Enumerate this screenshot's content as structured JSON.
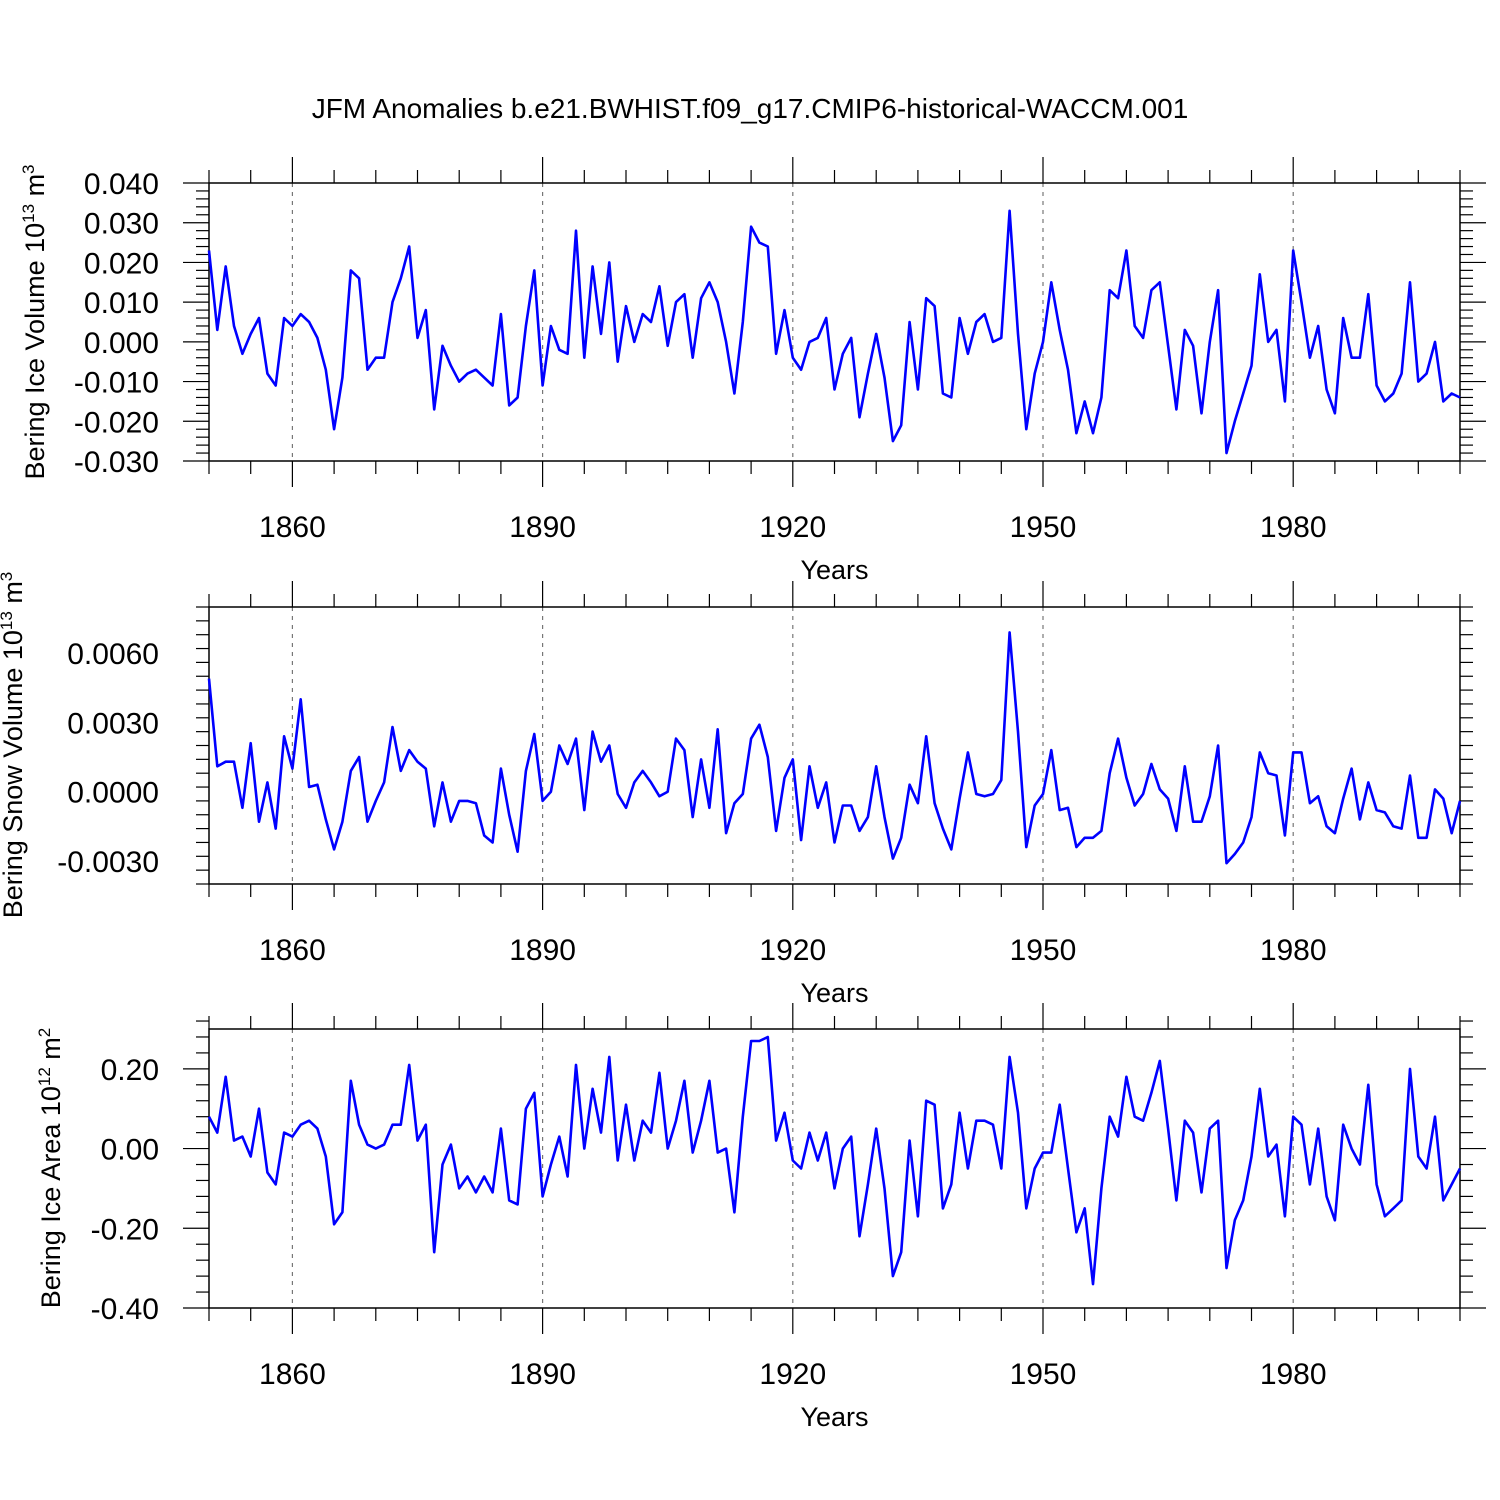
{
  "figure": {
    "title": "JFM Anomalies b.e21.BWHIST.f09_g17.CMIP6-historical-WACCM.001",
    "line_color": "#0000ff",
    "axis_color": "#000000"
  },
  "chart_data": [
    {
      "type": "line",
      "ylabel_main": "Bering Ice Volume 10",
      "ylabel_exp": "13",
      "ylabel_unit": " m",
      "ylabel_unit_exp": "3",
      "xlabel": "Years",
      "xlim": [
        1850,
        2000
      ],
      "ylim": [
        -0.03,
        0.04
      ],
      "x_ticks": [
        1860,
        1890,
        1920,
        1950,
        1980
      ],
      "x_tick_labels": [
        "1860",
        "1890",
        "1920",
        "1950",
        "1980"
      ],
      "y_ticks": [
        -0.03,
        -0.02,
        -0.01,
        0.0,
        0.01,
        0.02,
        0.03,
        0.04
      ],
      "y_tick_labels": [
        "-0.030",
        "-0.020",
        "-0.010",
        "0.000",
        "0.010",
        "0.020",
        "0.030",
        "0.040"
      ],
      "y_minor_step": 0.002,
      "x_start": 1850,
      "series": [
        {
          "name": "Bering Ice Volume",
          "values": [
            0.023,
            0.003,
            0.019,
            0.004,
            -0.003,
            0.002,
            0.006,
            -0.008,
            -0.011,
            0.006,
            0.004,
            0.007,
            0.005,
            0.001,
            -0.007,
            -0.022,
            -0.009,
            0.018,
            0.016,
            -0.007,
            -0.004,
            -0.004,
            0.01,
            0.016,
            0.024,
            0.001,
            0.008,
            -0.017,
            -0.001,
            -0.006,
            -0.01,
            -0.008,
            -0.007,
            -0.009,
            -0.011,
            0.007,
            -0.016,
            -0.014,
            0.004,
            0.018,
            -0.011,
            0.004,
            -0.002,
            -0.003,
            0.028,
            -0.004,
            0.019,
            0.002,
            0.02,
            -0.005,
            0.009,
            0.0,
            0.007,
            0.005,
            0.014,
            -0.001,
            0.01,
            0.012,
            -0.004,
            0.011,
            0.015,
            0.01,
            0.0,
            -0.013,
            0.005,
            0.029,
            0.025,
            0.024,
            -0.003,
            0.008,
            -0.004,
            -0.007,
            0.0,
            0.001,
            0.006,
            -0.012,
            -0.003,
            0.001,
            -0.019,
            -0.008,
            0.002,
            -0.009,
            -0.025,
            -0.021,
            0.005,
            -0.012,
            0.011,
            0.009,
            -0.013,
            -0.014,
            0.006,
            -0.003,
            0.005,
            0.007,
            0.0,
            0.001,
            0.033,
            0.002,
            -0.022,
            -0.008,
            0.0,
            0.015,
            0.003,
            -0.007,
            -0.023,
            -0.015,
            -0.023,
            -0.014,
            0.013,
            0.011,
            0.023,
            0.004,
            0.001,
            0.013,
            0.015,
            -0.001,
            -0.017,
            0.003,
            -0.001,
            -0.018,
            0.0,
            0.013,
            -0.028,
            -0.02,
            -0.013,
            -0.006,
            0.017,
            0.0,
            0.003,
            -0.015,
            0.023,
            0.01,
            -0.004,
            0.004,
            -0.012,
            -0.018,
            0.006,
            -0.004,
            -0.004,
            0.012,
            -0.011,
            -0.015,
            -0.013,
            -0.008,
            0.015,
            -0.01,
            -0.008,
            0.0,
            -0.015,
            -0.013,
            -0.014
          ]
        }
      ]
    },
    {
      "type": "line",
      "ylabel_main": "Bering Snow Volume 10",
      "ylabel_exp": "13",
      "ylabel_unit": " m",
      "ylabel_unit_exp": "3",
      "xlabel": "Years",
      "xlim": [
        1850,
        2000
      ],
      "ylim": [
        -0.004,
        0.008
      ],
      "x_ticks": [
        1860,
        1890,
        1920,
        1950,
        1980
      ],
      "x_tick_labels": [
        "1860",
        "1890",
        "1920",
        "1950",
        "1980"
      ],
      "y_ticks": [
        -0.003,
        0.0,
        0.003,
        0.006
      ],
      "y_tick_labels": [
        "-0.0030",
        "0.0000",
        "0.0030",
        "0.0060"
      ],
      "y_minor_step": 0.0006,
      "x_start": 1850,
      "series": [
        {
          "name": "Bering Snow Volume",
          "values": [
            0.0049,
            0.0011,
            0.0013,
            0.0013,
            -0.0007,
            0.0021,
            -0.0013,
            0.0004,
            -0.0016,
            0.0024,
            0.001,
            0.004,
            0.0002,
            0.0003,
            -0.0012,
            -0.0025,
            -0.0013,
            0.0009,
            0.0015,
            -0.0013,
            -0.0004,
            0.0004,
            0.0028,
            0.0009,
            0.0018,
            0.0013,
            0.001,
            -0.0015,
            0.0004,
            -0.0013,
            -0.0004,
            -0.0004,
            -0.0005,
            -0.0019,
            -0.0022,
            0.001,
            -0.001,
            -0.0026,
            0.0009,
            0.0025,
            -0.0004,
            0.0,
            0.002,
            0.0012,
            0.0023,
            -0.0008,
            0.0026,
            0.0013,
            0.002,
            -0.0001,
            -0.0007,
            0.0004,
            0.0009,
            0.0004,
            -0.0002,
            0.0,
            0.0023,
            0.0018,
            -0.0011,
            0.0014,
            -0.0007,
            0.0027,
            -0.0018,
            -0.0005,
            -0.0001,
            0.0023,
            0.0029,
            0.0015,
            -0.0017,
            0.0006,
            0.0014,
            -0.0021,
            0.0011,
            -0.0007,
            0.0004,
            -0.0022,
            -0.0006,
            -0.0006,
            -0.0017,
            -0.0011,
            0.0011,
            -0.0011,
            -0.0029,
            -0.002,
            0.0003,
            -0.0005,
            0.0024,
            -0.0005,
            -0.0016,
            -0.0025,
            -0.0003,
            0.0017,
            -0.0001,
            -0.0002,
            -0.0001,
            0.0005,
            0.0069,
            0.0026,
            -0.0024,
            -0.0006,
            -0.0001,
            0.0018,
            -0.0008,
            -0.0007,
            -0.0024,
            -0.002,
            -0.002,
            -0.0017,
            0.0008,
            0.0023,
            0.0006,
            -0.0006,
            -0.0001,
            0.0012,
            0.0001,
            -0.0003,
            -0.0017,
            0.0011,
            -0.0013,
            -0.0013,
            -0.0002,
            0.002,
            -0.0031,
            -0.0027,
            -0.0022,
            -0.0011,
            0.0017,
            0.0008,
            0.0007,
            -0.0019,
            0.0017,
            0.0017,
            -0.0005,
            -0.0002,
            -0.0015,
            -0.0018,
            -0.0003,
            0.001,
            -0.0012,
            0.0004,
            -0.0008,
            -0.0009,
            -0.0015,
            -0.0016,
            0.0007,
            -0.002,
            -0.002,
            0.0001,
            -0.0003,
            -0.0018,
            -0.0004
          ]
        }
      ]
    },
    {
      "type": "line",
      "ylabel_main": "Bering Ice Area 10",
      "ylabel_exp": "12",
      "ylabel_unit": " m",
      "ylabel_unit_exp": "2",
      "xlabel": "Years",
      "xlim": [
        1850,
        2000
      ],
      "ylim": [
        -0.4,
        0.3
      ],
      "x_ticks": [
        1860,
        1890,
        1920,
        1950,
        1980
      ],
      "x_tick_labels": [
        "1860",
        "1890",
        "1920",
        "1950",
        "1980"
      ],
      "y_ticks": [
        -0.4,
        -0.2,
        0.0,
        0.2
      ],
      "y_tick_labels": [
        "-0.40",
        "-0.20",
        "0.00",
        "0.20"
      ],
      "y_minor_step": 0.04,
      "x_start": 1850,
      "series": [
        {
          "name": "Bering Ice Area",
          "values": [
            0.08,
            0.04,
            0.18,
            0.02,
            0.03,
            -0.02,
            0.1,
            -0.06,
            -0.09,
            0.04,
            0.03,
            0.06,
            0.07,
            0.05,
            -0.02,
            -0.19,
            -0.16,
            0.17,
            0.06,
            0.01,
            0.0,
            0.01,
            0.06,
            0.06,
            0.21,
            0.02,
            0.06,
            -0.26,
            -0.04,
            0.01,
            -0.1,
            -0.07,
            -0.11,
            -0.07,
            -0.11,
            0.05,
            -0.13,
            -0.14,
            0.1,
            0.14,
            -0.12,
            -0.04,
            0.03,
            -0.07,
            0.21,
            0.0,
            0.15,
            0.04,
            0.23,
            -0.03,
            0.11,
            -0.03,
            0.07,
            0.04,
            0.19,
            0.0,
            0.07,
            0.17,
            -0.01,
            0.07,
            0.17,
            -0.01,
            0.0,
            -0.16,
            0.08,
            0.27,
            0.27,
            0.28,
            0.02,
            0.09,
            -0.03,
            -0.05,
            0.04,
            -0.03,
            0.04,
            -0.1,
            0.0,
            0.03,
            -0.22,
            -0.09,
            0.05,
            -0.1,
            -0.32,
            -0.26,
            0.02,
            -0.17,
            0.12,
            0.11,
            -0.15,
            -0.09,
            0.09,
            -0.05,
            0.07,
            0.07,
            0.06,
            -0.05,
            0.23,
            0.09,
            -0.15,
            -0.05,
            -0.01,
            -0.01,
            0.11,
            -0.05,
            -0.21,
            -0.15,
            -0.34,
            -0.1,
            0.08,
            0.03,
            0.18,
            0.08,
            0.07,
            0.14,
            0.22,
            0.05,
            -0.13,
            0.07,
            0.04,
            -0.11,
            0.05,
            0.07,
            -0.3,
            -0.18,
            -0.13,
            -0.02,
            0.15,
            -0.02,
            0.01,
            -0.17,
            0.08,
            0.06,
            -0.09,
            0.05,
            -0.12,
            -0.18,
            0.06,
            0.0,
            -0.04,
            0.16,
            -0.09,
            -0.17,
            -0.15,
            -0.13,
            0.2,
            -0.02,
            -0.05,
            0.08,
            -0.13,
            -0.09,
            -0.05
          ]
        }
      ]
    }
  ]
}
